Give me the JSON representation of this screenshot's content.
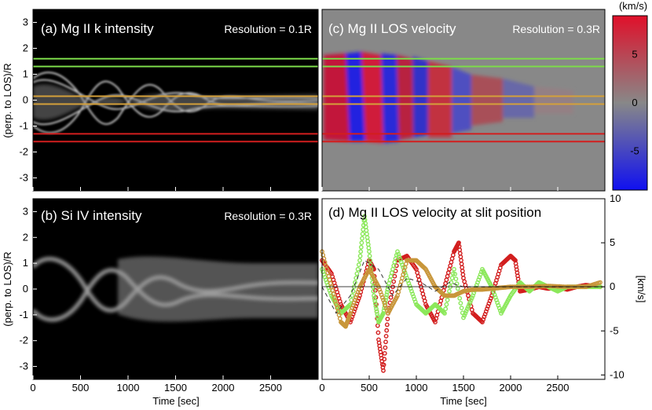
{
  "chart_data": [
    {
      "panel": "a",
      "type": "heatmap",
      "title": "(a)  Mg II k intensity",
      "resolution": "Resolution = 0.1R",
      "ylabel": "(perp. to LOS)/R",
      "ylim": [
        -3.5,
        3.5
      ],
      "xlim": [
        0,
        3000
      ],
      "yticks": [
        "-3",
        "-2",
        "-1",
        "0",
        "1",
        "2",
        "3"
      ],
      "slit_lines": [
        {
          "color": "#7ddc4a",
          "y": 1.6
        },
        {
          "color": "#7ddc4a",
          "y": 1.3
        },
        {
          "color": "#d4a03a",
          "y": 0.15
        },
        {
          "color": "#d4a03a",
          "y": -0.15
        },
        {
          "color": "#d21e1e",
          "y": -1.3
        },
        {
          "color": "#d21e1e",
          "y": -1.6
        }
      ]
    },
    {
      "panel": "c",
      "type": "heatmap",
      "title": "(c)  Mg II LOS velocity",
      "resolution": "Resolution = 0.3R",
      "ylim": [
        -3.5,
        3.5
      ],
      "xlim": [
        0,
        3000
      ],
      "colorbar": {
        "label": "(km/s)",
        "ticks": [
          "5",
          "0",
          "-5"
        ],
        "range": [
          -9,
          9
        ]
      }
    },
    {
      "panel": "b",
      "type": "heatmap",
      "title": "(b)  Si IV intensity",
      "resolution": "Resolution = 0.3R",
      "ylabel": "(perp. to LOS)/R",
      "xlabel": "Time [sec]",
      "ylim": [
        -3.5,
        3.5
      ],
      "xlim": [
        0,
        3000
      ],
      "xticks": [
        "0",
        "500",
        "1000",
        "1500",
        "2000",
        "2500"
      ]
    },
    {
      "panel": "d",
      "type": "scatter",
      "title": "(d)  Mg II LOS velocity at slit position",
      "xlabel": "Time [sec]",
      "ylabel": "[km/s]",
      "xlim": [
        0,
        3000
      ],
      "ylim": [
        -10.5,
        10
      ],
      "yticks": [
        "10",
        "5",
        "0",
        "-5",
        "-10"
      ],
      "xticks": [
        "0",
        "500",
        "1000",
        "1500",
        "2000",
        "2500"
      ],
      "series": [
        {
          "name": "red slit",
          "color": "#d21e1e",
          "x": [
            0,
            100,
            200,
            300,
            400,
            500,
            550,
            600,
            650,
            700,
            800,
            900,
            1000,
            1100,
            1200,
            1300,
            1400,
            1450,
            1500,
            1600,
            1700,
            1800,
            1900,
            2000,
            2050,
            2100,
            2200,
            2300,
            2400,
            2500,
            2600,
            2700,
            2800,
            2950
          ],
          "y": [
            3,
            1.5,
            -2,
            -4,
            -1,
            3,
            2,
            -6,
            -9.5,
            -3,
            3,
            3.5,
            2,
            -2,
            -4,
            0,
            4,
            5,
            1,
            -3,
            -4,
            -1,
            2.5,
            3.5,
            3,
            -0.5,
            -0.3,
            0,
            -0.2,
            0,
            -0.3,
            0,
            0.2,
            0
          ]
        },
        {
          "name": "green slit",
          "color": "#8be85a",
          "x": [
            0,
            100,
            200,
            300,
            400,
            450,
            500,
            550,
            600,
            650,
            700,
            800,
            900,
            1000,
            1100,
            1200,
            1300,
            1400,
            1500,
            1600,
            1700,
            1800,
            1900,
            2000,
            2100,
            2200,
            2300,
            2400,
            2500,
            2600,
            2700,
            2800,
            2950
          ],
          "y": [
            2,
            -1,
            -3,
            -2,
            3,
            8,
            4,
            -1,
            -4,
            -3,
            0,
            4,
            1,
            -2,
            -3,
            -2,
            -3,
            2,
            -3.5,
            -1,
            2,
            0,
            -3,
            -1,
            0.5,
            -0.5,
            0.5,
            0,
            -0.5,
            0,
            0,
            0,
            0
          ]
        },
        {
          "name": "orange slit",
          "color": "#c8963a",
          "x": [
            0,
            100,
            200,
            250,
            300,
            400,
            500,
            600,
            700,
            800,
            900,
            1000,
            1100,
            1200,
            1300,
            1400,
            1500,
            1600,
            1700,
            1800,
            1900,
            2000,
            2200,
            2400,
            2600,
            2800,
            2950
          ],
          "y": [
            4,
            0,
            -4,
            -4.5,
            -3,
            0,
            2,
            0,
            -3,
            -1,
            3,
            3,
            2,
            0,
            -1,
            -1,
            -0.5,
            -0.3,
            -0.3,
            -0.2,
            -0.1,
            0,
            0,
            0.1,
            0,
            0,
            0.5
          ]
        },
        {
          "name": "dashed",
          "color": "#333333",
          "dashed": true,
          "x": [
            0,
            150,
            300,
            450,
            600,
            750,
            900,
            1050,
            1200,
            1350,
            1500,
            1650,
            1800,
            1950,
            2100,
            2400,
            2950
          ],
          "y": [
            0,
            -3,
            -1,
            3,
            2,
            -1,
            1,
            0.5,
            -0.5,
            0.5,
            0,
            0,
            0,
            0,
            0,
            0,
            0
          ]
        }
      ]
    }
  ]
}
